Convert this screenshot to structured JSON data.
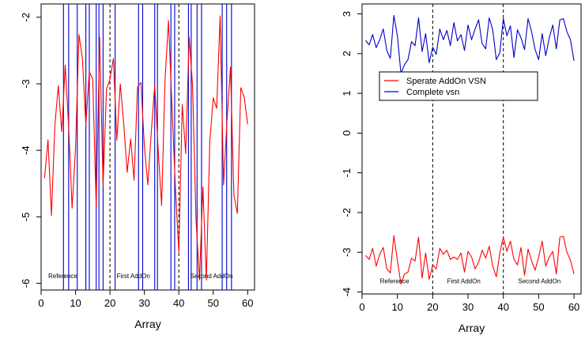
{
  "chart_data": [
    {
      "type": "line",
      "xlabel": "Array",
      "ylabel": "",
      "xlim": [
        0,
        62
      ],
      "ylim": [
        -6.1,
        -1.8
      ],
      "xticks": [
        0,
        10,
        20,
        30,
        40,
        50,
        60
      ],
      "yticks": [
        -6,
        -5,
        -4,
        -3,
        -2
      ],
      "grid": false,
      "series": [
        {
          "color": "#ff0000",
          "x": [
            1,
            2,
            3,
            4,
            5,
            6,
            7,
            8,
            9,
            10,
            11,
            12,
            13,
            14,
            15,
            16,
            17,
            18,
            19,
            20,
            21,
            22,
            23,
            24,
            25,
            26,
            27,
            28,
            29,
            30,
            31,
            32,
            33,
            34,
            35,
            36,
            37,
            38,
            39,
            40,
            41,
            42,
            43,
            44,
            45,
            46,
            47,
            48,
            49,
            50,
            51,
            52,
            53,
            54,
            55,
            56,
            57,
            58,
            59,
            60
          ],
          "values": [
            -4.42,
            -3.84,
            -4.98,
            -3.62,
            -3.03,
            -3.72,
            -2.72,
            -3.64,
            -4.87,
            -3.97,
            -2.26,
            -2.62,
            -3.62,
            -2.82,
            -2.93,
            -4.86,
            -2.3,
            -4.53,
            -3.08,
            -2.93,
            -2.62,
            -3.85,
            -3,
            -3.6,
            -4.33,
            -3.83,
            -4.45,
            -3.05,
            -2.98,
            -3.95,
            -4.52,
            -3.73,
            -3.02,
            -3.98,
            -4.83,
            -2.94,
            -2.05,
            -3.32,
            -4.55,
            -5.53,
            -3.31,
            -4.05,
            -2.3,
            -3.03,
            -5.05,
            -5.95,
            -4.55,
            -5.95,
            -3.87,
            -3.21,
            -3.37,
            -1.98,
            -4.52,
            -3.55,
            -2.75,
            -4.67,
            -4.95,
            -3.06,
            -3.2,
            -3.61
          ]
        }
      ],
      "vlines_solid": {
        "color": "#0000cc",
        "x": [
          6.5,
          8,
          10.5,
          13,
          14,
          16,
          16.8,
          18,
          21.5,
          28.3,
          29.5,
          33,
          33.8,
          37.7,
          38.8,
          42.8,
          43.6,
          45.3,
          46.6,
          52.6,
          53.9,
          55.3
        ]
      },
      "vlines_dashed": [
        20,
        40
      ],
      "region_labels": [
        {
          "text": "Reference",
          "x": 6.3,
          "y": -5.92
        },
        {
          "text": "First AddOn",
          "x": 26.8,
          "y": -5.92
        },
        {
          "text": "Second AddOn",
          "x": 49.5,
          "y": -5.92
        }
      ]
    },
    {
      "type": "line",
      "xlabel": "Array",
      "ylabel": "",
      "xlim": [
        0,
        62
      ],
      "ylim": [
        -4.05,
        3.25
      ],
      "xticks": [
        0,
        10,
        20,
        30,
        40,
        50,
        60
      ],
      "yticks": [
        -4,
        -3,
        -2,
        -1,
        0,
        1,
        2,
        3
      ],
      "grid": false,
      "legend": {
        "position": "center-left",
        "entries": [
          {
            "label": "Sperate AddOn VSN",
            "color": "#ff0000"
          },
          {
            "label": "Complete vsn",
            "color": "#0000cc"
          }
        ]
      },
      "series": [
        {
          "color": "#0000cc",
          "x": [
            1,
            2,
            3,
            4,
            5,
            6,
            7,
            8,
            9,
            10,
            11,
            12,
            13,
            14,
            15,
            16,
            17,
            18,
            19,
            20,
            21,
            22,
            23,
            24,
            25,
            26,
            27,
            28,
            29,
            30,
            31,
            32,
            33,
            34,
            35,
            36,
            37,
            38,
            39,
            40,
            41,
            42,
            43,
            44,
            45,
            46,
            47,
            48,
            49,
            50,
            51,
            52,
            53,
            54,
            55,
            56,
            57,
            58,
            59,
            60
          ],
          "values": [
            2.33,
            2.22,
            2.48,
            2.15,
            2.35,
            2.62,
            2.08,
            1.88,
            2.96,
            2.45,
            1.5,
            1.72,
            1.85,
            2.3,
            2.2,
            2.9,
            2.05,
            2.5,
            1.77,
            2.16,
            1.98,
            2.62,
            2.35,
            2.58,
            2.2,
            2.78,
            2.32,
            2.48,
            2.08,
            2.72,
            2.35,
            2.62,
            2.85,
            2.25,
            2.12,
            2.9,
            2.6,
            1.85,
            2.02,
            2.88,
            2.45,
            2.7,
            1.9,
            2.6,
            2.4,
            2.1,
            2.88,
            2.55,
            2.1,
            1.85,
            2.5,
            1.95,
            2.4,
            2.72,
            2.12,
            2.85,
            2.88,
            2.55,
            2.35,
            1.82
          ]
        },
        {
          "color": "#ff0000",
          "x": [
            1,
            2,
            3,
            4,
            5,
            6,
            7,
            8,
            9,
            10,
            11,
            12,
            13,
            14,
            15,
            16,
            17,
            18,
            19,
            20,
            21,
            22,
            23,
            24,
            25,
            26,
            27,
            28,
            29,
            30,
            31,
            32,
            33,
            34,
            35,
            36,
            37,
            38,
            39,
            40,
            41,
            42,
            43,
            44,
            45,
            46,
            47,
            48,
            49,
            50,
            51,
            52,
            53,
            54,
            55,
            56,
            57,
            58,
            59,
            60
          ],
          "values": [
            -3.08,
            -3.18,
            -2.9,
            -3.35,
            -3.05,
            -2.88,
            -3.42,
            -3.52,
            -2.58,
            -3.2,
            -3.8,
            -3.55,
            -3.5,
            -3.15,
            -3.22,
            -2.62,
            -3.65,
            -3.02,
            -3.68,
            -3.32,
            -3.42,
            -2.9,
            -3.05,
            -2.95,
            -3.18,
            -3.12,
            -3.18,
            -3.02,
            -3.5,
            -2.98,
            -3.12,
            -3.42,
            -3.25,
            -2.95,
            -3.15,
            -2.85,
            -3.35,
            -3.62,
            -3.02,
            -2.62,
            -2.98,
            -2.72,
            -3.18,
            -3.32,
            -2.88,
            -3.58,
            -2.92,
            -3.22,
            -3.45,
            -3.12,
            -2.72,
            -3.35,
            -3.12,
            -2.98,
            -3.55,
            -2.62,
            -2.6,
            -3.0,
            -3.2,
            -3.55
          ]
        }
      ],
      "vlines_dashed": [
        20,
        40
      ],
      "region_labels": [
        {
          "text": "Reference",
          "x": 9.2,
          "y": -3.78
        },
        {
          "text": "First AddOn",
          "x": 28.8,
          "y": -3.78
        },
        {
          "text": "Second AddOn",
          "x": 50.2,
          "y": -3.78
        }
      ]
    }
  ]
}
